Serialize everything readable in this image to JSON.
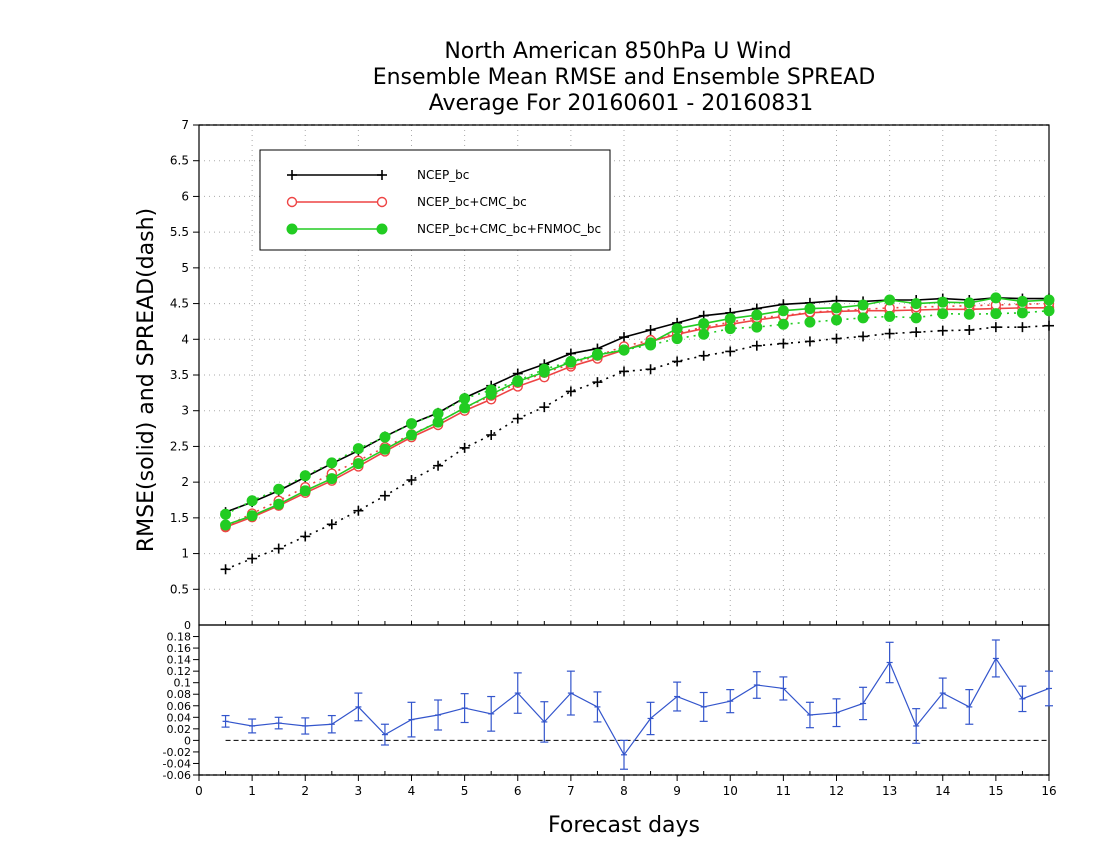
{
  "chart_data": [
    {
      "type": "line",
      "title": [
        "North American 850hPa U Wind",
        "Ensemble Mean RMSE and Ensemble SPREAD",
        "Average For 20160601 - 20160831"
      ],
      "ylabel": "RMSE(solid) and SPREAD(dash)",
      "xlim": [
        0,
        16
      ],
      "ylim": [
        0,
        7
      ],
      "x_ticks": [
        0,
        1,
        2,
        3,
        4,
        5,
        6,
        7,
        8,
        9,
        10,
        11,
        12,
        13,
        14,
        15,
        16
      ],
      "y_ticks": [
        0.5,
        1,
        1.5,
        2,
        2.5,
        3,
        3.5,
        4,
        4.5,
        5,
        5.5,
        6,
        6.5,
        7
      ],
      "grid": true,
      "legend_position": "top-left",
      "x": [
        0.5,
        1,
        1.5,
        2,
        2.5,
        3,
        3.5,
        4,
        4.5,
        5,
        5.5,
        6,
        6.5,
        7,
        7.5,
        8,
        8.5,
        9,
        9.5,
        10,
        10.5,
        11,
        11.5,
        12,
        12.5,
        13,
        13.5,
        14,
        14.5,
        15,
        15.5,
        16
      ],
      "series": [
        {
          "name": "NCEP_bc",
          "color": "#000000",
          "marker": "plus",
          "rmse": [
            1.58,
            1.72,
            1.88,
            2.07,
            2.26,
            2.44,
            2.64,
            2.82,
            2.97,
            3.18,
            3.35,
            3.52,
            3.65,
            3.8,
            3.87,
            4.03,
            4.13,
            4.23,
            4.33,
            4.37,
            4.43,
            4.49,
            4.51,
            4.54,
            4.53,
            4.55,
            4.55,
            4.57,
            4.55,
            4.58,
            4.57,
            4.57
          ],
          "spread": [
            0.78,
            0.93,
            1.07,
            1.24,
            1.41,
            1.6,
            1.81,
            2.03,
            2.23,
            2.48,
            2.66,
            2.89,
            3.05,
            3.27,
            3.4,
            3.55,
            3.58,
            3.69,
            3.77,
            3.83,
            3.91,
            3.94,
            3.97,
            4.01,
            4.04,
            4.08,
            4.1,
            4.12,
            4.13,
            4.17,
            4.17,
            4.19
          ]
        },
        {
          "name": "NCEP_bc+CMC_bc",
          "color": "#ee4444",
          "marker": "open-circle",
          "rmse": [
            1.37,
            1.51,
            1.67,
            1.85,
            2.02,
            2.22,
            2.43,
            2.63,
            2.8,
            3.0,
            3.16,
            3.34,
            3.47,
            3.62,
            3.73,
            3.85,
            3.97,
            4.07,
            4.15,
            4.21,
            4.27,
            4.32,
            4.37,
            4.39,
            4.4,
            4.4,
            4.41,
            4.42,
            4.42,
            4.43,
            4.44,
            4.44
          ],
          "spread": [
            1.38,
            1.56,
            1.74,
            1.93,
            2.12,
            2.3,
            2.49,
            2.67,
            2.84,
            3.04,
            3.21,
            3.39,
            3.53,
            3.65,
            3.77,
            3.9,
            3.99,
            4.09,
            4.17,
            4.24,
            4.3,
            4.33,
            4.38,
            4.4,
            4.42,
            4.44,
            4.45,
            4.46,
            4.47,
            4.48,
            4.49,
            4.5
          ]
        },
        {
          "name": "NCEP_bc+CMC_bc+FNMOC_bc",
          "color": "#22cc22",
          "marker": "filled-circle",
          "rmse": [
            1.4,
            1.53,
            1.69,
            1.88,
            2.05,
            2.26,
            2.46,
            2.66,
            2.84,
            3.04,
            3.23,
            3.41,
            3.54,
            3.68,
            3.78,
            3.85,
            3.95,
            4.15,
            4.22,
            4.29,
            4.34,
            4.4,
            4.43,
            4.44,
            4.48,
            4.55,
            4.5,
            4.52,
            4.51,
            4.58,
            4.53,
            4.55
          ],
          "spread": [
            1.55,
            1.74,
            1.9,
            2.09,
            2.27,
            2.47,
            2.63,
            2.82,
            2.96,
            3.17,
            3.29,
            3.42,
            3.58,
            3.69,
            3.79,
            3.85,
            3.92,
            4.01,
            4.07,
            4.15,
            4.17,
            4.21,
            4.24,
            4.27,
            4.3,
            4.32,
            4.3,
            4.36,
            4.35,
            4.36,
            4.37,
            4.4
          ]
        }
      ]
    },
    {
      "type": "line",
      "xlabel": "Forecast days",
      "xlim": [
        0,
        16
      ],
      "ylim": [
        -0.06,
        0.2
      ],
      "y_ticks": [
        -0.06,
        -0.04,
        -0.02,
        0,
        0.02,
        0.04,
        0.06,
        0.08,
        0.1,
        0.12,
        0.14,
        0.16,
        0.18
      ],
      "x_ticks": [
        0,
        1,
        2,
        3,
        4,
        5,
        6,
        7,
        8,
        9,
        10,
        11,
        12,
        13,
        14,
        15,
        16
      ],
      "zero_line": true,
      "series": [
        {
          "color": "#3355cc",
          "marker": "error-bar",
          "x": [
            0.5,
            1,
            1.5,
            2,
            2.5,
            3,
            3.5,
            4,
            4.5,
            5,
            5.5,
            6,
            6.5,
            7,
            7.5,
            8,
            8.5,
            9,
            9.5,
            10,
            10.5,
            11,
            11.5,
            12,
            12.5,
            13,
            13.5,
            14,
            14.5,
            15,
            15.5,
            16
          ],
          "values": [
            0.033,
            0.025,
            0.03,
            0.025,
            0.028,
            0.058,
            0.01,
            0.036,
            0.044,
            0.056,
            0.046,
            0.082,
            0.032,
            0.082,
            0.058,
            -0.025,
            0.038,
            0.076,
            0.058,
            0.068,
            0.096,
            0.09,
            0.044,
            0.048,
            0.064,
            0.135,
            0.025,
            0.082,
            0.058,
            0.142,
            0.072,
            0.09
          ],
          "error": [
            0.01,
            0.012,
            0.01,
            0.014,
            0.015,
            0.024,
            0.018,
            0.03,
            0.026,
            0.025,
            0.03,
            0.035,
            0.035,
            0.038,
            0.026,
            0.025,
            0.028,
            0.025,
            0.025,
            0.02,
            0.023,
            0.02,
            0.022,
            0.024,
            0.028,
            0.035,
            0.03,
            0.026,
            0.03,
            0.032,
            0.022,
            0.03
          ]
        }
      ]
    }
  ]
}
